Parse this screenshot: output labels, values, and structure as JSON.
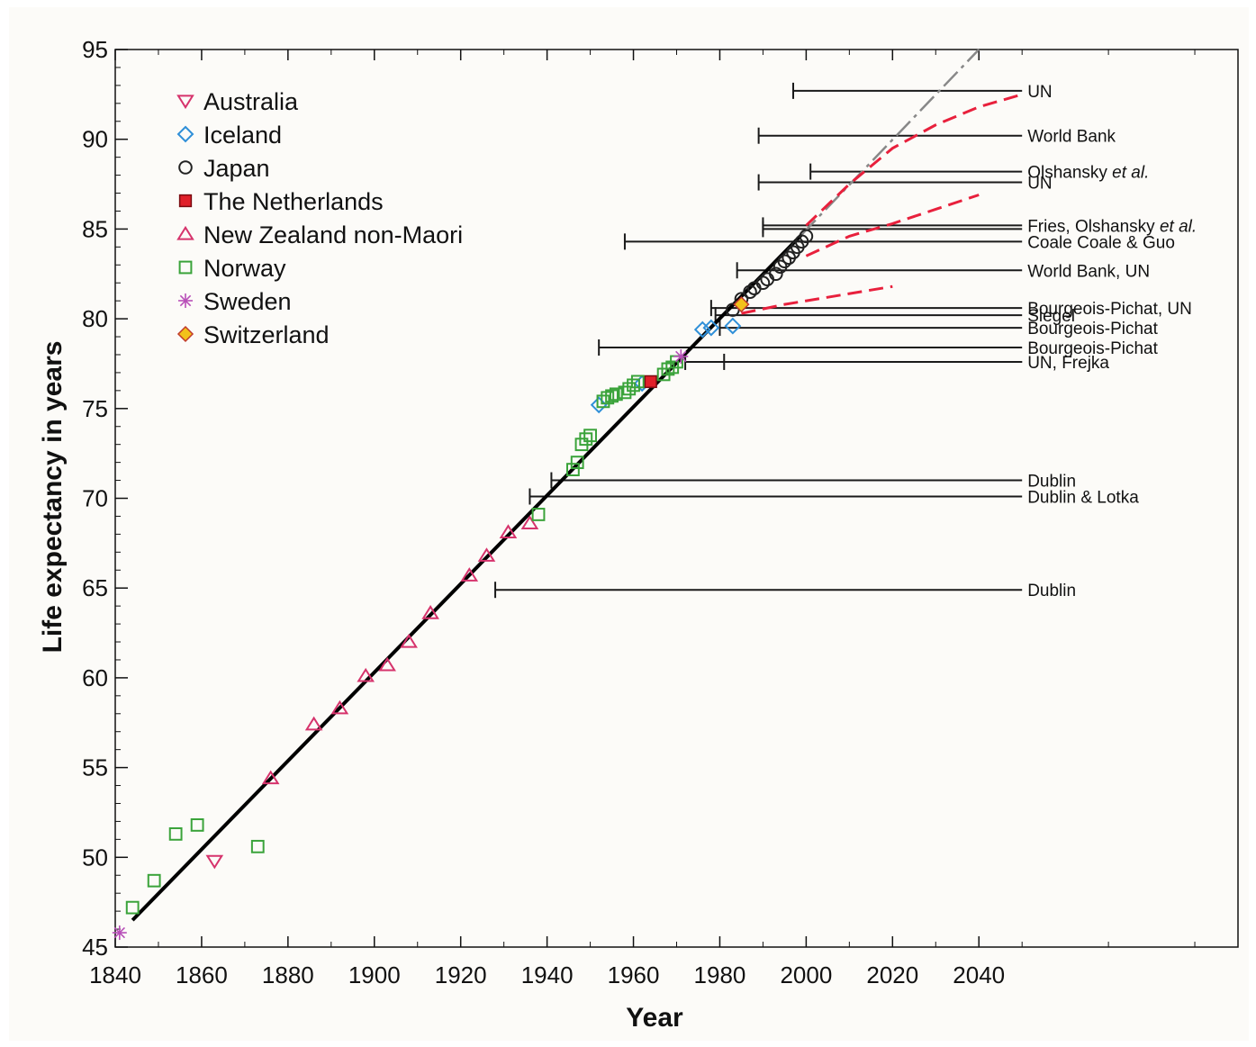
{
  "chart_data": {
    "type": "scatter",
    "title": "",
    "xlabel": "Year",
    "ylabel": "Life expectancy in years",
    "xlim": [
      1840,
      2100
    ],
    "ylim": [
      45,
      95
    ],
    "x_ticks": [
      1840,
      1860,
      1880,
      1900,
      1920,
      1940,
      1960,
      1980,
      2000,
      2020,
      2040
    ],
    "y_ticks": [
      45,
      50,
      55,
      60,
      65,
      70,
      75,
      80,
      85,
      90,
      95
    ],
    "grid": false,
    "legend_position": "top-left",
    "series": [
      {
        "name": "Australia",
        "marker": "triangle-down",
        "color": "#d6336c",
        "x": [
          1863
        ],
        "y": [
          49.8
        ]
      },
      {
        "name": "Iceland",
        "marker": "diamond",
        "color": "#2f8fd8",
        "x": [
          1952,
          1962,
          1976,
          1978,
          1983
        ],
        "y": [
          75.2,
          76.4,
          79.4,
          79.5,
          79.6
        ]
      },
      {
        "name": "Japan",
        "marker": "circle",
        "color": "#222222",
        "x": [
          1983,
          1985,
          1987,
          1988,
          1990,
          1991,
          1993,
          1994,
          1995,
          1996,
          1997,
          1998,
          1999,
          2000
        ],
        "y": [
          80.5,
          81.1,
          81.5,
          81.7,
          82.0,
          82.2,
          82.5,
          82.9,
          83.2,
          83.4,
          83.7,
          84.0,
          84.3,
          84.6
        ]
      },
      {
        "name": "The Netherlands",
        "marker": "square-filled",
        "color": "#e0202a",
        "x": [
          1964
        ],
        "y": [
          76.5
        ]
      },
      {
        "name": "New Zealand non-Maori",
        "marker": "triangle-up",
        "color": "#d6336c",
        "x": [
          1876,
          1886,
          1892,
          1898,
          1903,
          1908,
          1913,
          1922,
          1926,
          1931,
          1936
        ],
        "y": [
          54.4,
          57.4,
          58.3,
          60.1,
          60.7,
          62.0,
          63.6,
          65.7,
          66.8,
          68.1,
          68.6
        ]
      },
      {
        "name": "Norway",
        "marker": "square",
        "color": "#3aa33a",
        "x": [
          1844,
          1849,
          1854,
          1859,
          1873,
          1938,
          1946,
          1947,
          1948,
          1949,
          1950,
          1953,
          1954,
          1955,
          1956,
          1958,
          1959,
          1960,
          1961,
          1967,
          1968,
          1969,
          1970
        ],
        "y": [
          47.2,
          48.7,
          51.3,
          51.8,
          50.6,
          69.1,
          71.6,
          72.0,
          73.0,
          73.3,
          73.5,
          75.4,
          75.6,
          75.7,
          75.8,
          75.9,
          76.1,
          76.3,
          76.5,
          76.9,
          77.2,
          77.3,
          77.6
        ]
      },
      {
        "name": "Sweden",
        "marker": "star",
        "color": "#b84fb8",
        "x": [
          1841,
          1971
        ],
        "y": [
          45.8,
          77.9
        ]
      },
      {
        "name": "Switzerland",
        "marker": "diamond-filled",
        "color": "#f2c21b",
        "x": [
          1985
        ],
        "y": [
          80.8
        ]
      }
    ],
    "trend_line": {
      "x": [
        1844,
        1999
      ],
      "y": [
        46.5,
        84.7
      ]
    },
    "trend_extension": {
      "x": [
        1999,
        2040
      ],
      "y": [
        84.7,
        95
      ]
    },
    "forecast_curves": [
      {
        "x": [
          2000,
          2010,
          2020,
          2030,
          2040,
          2050
        ],
        "y": [
          85.2,
          87.5,
          89.5,
          90.8,
          91.8,
          92.5
        ]
      },
      {
        "x": [
          2000,
          2010,
          2020,
          2030,
          2040
        ],
        "y": [
          83.5,
          84.6,
          85.3,
          86.1,
          86.9
        ]
      },
      {
        "x": [
          1985,
          1995,
          2005,
          2015,
          2020
        ],
        "y": [
          80.3,
          80.8,
          81.2,
          81.6,
          81.8
        ]
      }
    ],
    "projection_limits": [
      {
        "label": "UN",
        "start_year": 1997,
        "value": 92.7
      },
      {
        "label": "World Bank",
        "start_year": 1989,
        "value": 90.2
      },
      {
        "label": "Olshansky et al.",
        "start_year": 2001,
        "value": 88.2
      },
      {
        "label": "UN",
        "start_year": 1989,
        "value": 87.6
      },
      {
        "label": "Fries, Olshansky et al.",
        "start_year": 1990,
        "value": 85.2
      },
      {
        "label": "Fries, Olshansky et al.",
        "start_year": 1990,
        "value": 85.0
      },
      {
        "label": "Coale   Coale & Guo",
        "start_year": 1958,
        "value": 84.3
      },
      {
        "label": "World Bank, UN",
        "start_year": 1984,
        "value": 82.7
      },
      {
        "label": "Bourgeois-Pichat, UN",
        "start_year": 1978,
        "value": 80.6
      },
      {
        "label": "Siegel",
        "start_year": 1979,
        "value": 80.2
      },
      {
        "label": "Bourgeois-Pichat",
        "start_year": 1980,
        "value": 79.5
      },
      {
        "label": "Bourgeois-Pichat",
        "start_year": 1952,
        "value": 78.4
      },
      {
        "label": "UN, Frejka",
        "start_year": 1972,
        "value": 77.6
      },
      {
        "label": "UN, Frejka",
        "start_year": 1981,
        "value": 77.6
      },
      {
        "label": "Dublin",
        "start_year": 1941,
        "value": 71.0
      },
      {
        "label": "Dublin & Lotka",
        "start_year": 1936,
        "value": 70.1
      },
      {
        "label": "Dublin",
        "start_year": 1928,
        "value": 64.9
      }
    ],
    "projection_end_year": 2050
  }
}
